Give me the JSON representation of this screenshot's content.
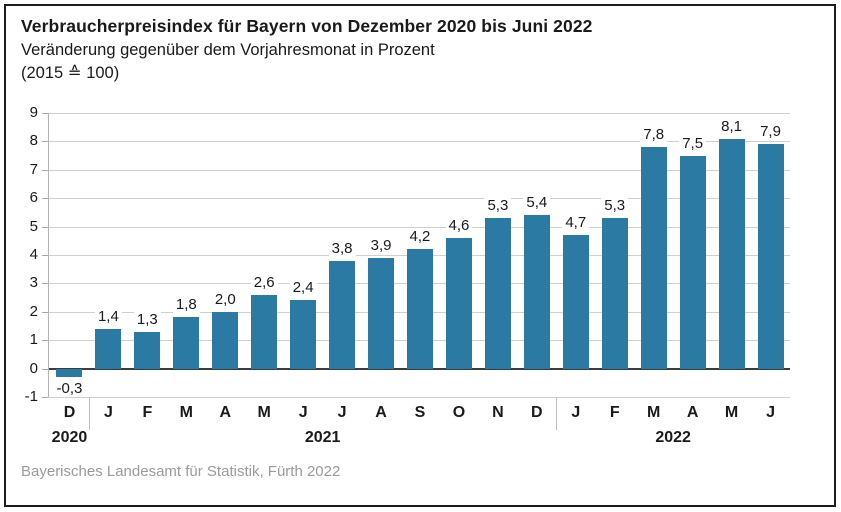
{
  "header": {
    "title": "Verbraucherpreisindex für Bayern von Dezember 2020 bis Juni 2022",
    "subtitle": "Veränderung gegenüber dem Vorjahresmonat in Prozent",
    "base_note": "(2015 ≙ 100)"
  },
  "footer": {
    "source": "Bayerisches Landesamt für Statistik, Fürth 2022"
  },
  "chart_data": {
    "type": "bar",
    "title": "Verbraucherpreisindex für Bayern von Dezember 2020 bis Juni 2022",
    "subtitle": "Veränderung gegenüber dem Vorjahresmonat in Prozent",
    "base_note": "(2015 ≙ 100)",
    "categories": [
      "D",
      "J",
      "F",
      "M",
      "A",
      "M",
      "J",
      "J",
      "A",
      "S",
      "O",
      "N",
      "D",
      "J",
      "F",
      "M",
      "A",
      "M",
      "J"
    ],
    "values": [
      -0.3,
      1.4,
      1.3,
      1.8,
      2.0,
      2.6,
      2.4,
      3.8,
      3.9,
      4.2,
      4.6,
      5.3,
      5.4,
      4.7,
      5.3,
      7.8,
      7.5,
      8.1,
      7.9
    ],
    "value_labels": [
      "-0,3",
      "1,4",
      "1,3",
      "1,8",
      "2,0",
      "2,6",
      "2,4",
      "3,8",
      "3,9",
      "4,2",
      "4,6",
      "5,3",
      "5,4",
      "4,7",
      "5,3",
      "7,8",
      "7,5",
      "8,1",
      "7,9"
    ],
    "year_groups": [
      {
        "label": "2020",
        "start": 0,
        "end": 0
      },
      {
        "label": "2021",
        "start": 1,
        "end": 12
      },
      {
        "label": "2022",
        "start": 13,
        "end": 18
      }
    ],
    "xlabel": "",
    "ylabel": "",
    "ylim": [
      -1,
      9
    ],
    "ytick_step": 1,
    "yticks": [
      -1,
      0,
      1,
      2,
      3,
      4,
      5,
      6,
      7,
      8,
      9
    ],
    "grid": true,
    "legend": "none",
    "bar_color": "#2b7aa4"
  }
}
